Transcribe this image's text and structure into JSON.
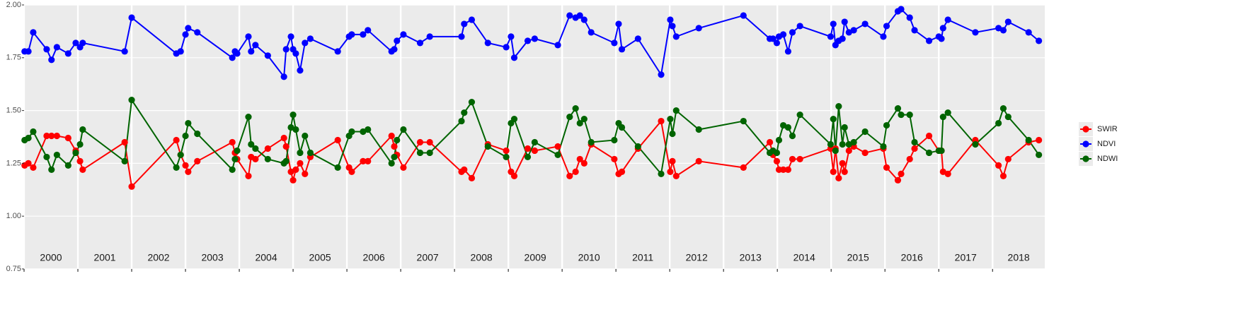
{
  "chart_data": {
    "type": "line",
    "x": [
      2000.01,
      2000.08,
      2000.17,
      2000.42,
      2000.51,
      2000.61,
      2000.82,
      2000.96,
      2001.04,
      2001.09,
      2001.87,
      2002.0,
      2002.83,
      2002.91,
      2003.0,
      2003.05,
      2003.22,
      2003.87,
      2003.92,
      2003.96,
      2004.17,
      2004.22,
      2004.3,
      2004.53,
      2004.83,
      2004.87,
      2004.96,
      2005.0,
      2005.05,
      2005.13,
      2005.22,
      2005.32,
      2005.83,
      2006.04,
      2006.09,
      2006.3,
      2006.39,
      2006.83,
      2006.88,
      2006.93,
      2007.05,
      2007.36,
      2007.54,
      2008.13,
      2008.18,
      2008.32,
      2008.62,
      2008.96,
      2009.05,
      2009.11,
      2009.36,
      2009.49,
      2009.92,
      2010.14,
      2010.25,
      2010.33,
      2010.41,
      2010.54,
      2010.97,
      2011.05,
      2011.11,
      2011.41,
      2011.84,
      2012.01,
      2012.05,
      2012.12,
      2012.54,
      2013.37,
      2013.86,
      2013.92,
      2013.99,
      2014.03,
      2014.11,
      2014.2,
      2014.28,
      2014.42,
      2014.99,
      2015.04,
      2015.08,
      2015.14,
      2015.21,
      2015.25,
      2015.33,
      2015.42,
      2015.63,
      2015.97,
      2016.03,
      2016.24,
      2016.3,
      2016.46,
      2016.55,
      2016.82,
      2017.0,
      2017.05,
      2017.08,
      2017.17,
      2017.68,
      2018.11,
      2018.2,
      2018.29,
      2018.67,
      2018.86
    ],
    "series": [
      {
        "name": "SWIR",
        "color": "#ff0000",
        "values": [
          1.24,
          1.25,
          1.23,
          1.38,
          1.38,
          1.38,
          1.37,
          1.31,
          1.26,
          1.22,
          1.35,
          1.14,
          1.36,
          1.29,
          1.24,
          1.21,
          1.26,
          1.35,
          1.3,
          1.27,
          1.19,
          1.28,
          1.27,
          1.32,
          1.37,
          1.33,
          1.21,
          1.17,
          1.22,
          1.25,
          1.2,
          1.28,
          1.36,
          1.23,
          1.21,
          1.26,
          1.26,
          1.38,
          1.33,
          1.29,
          1.23,
          1.35,
          1.35,
          1.21,
          1.22,
          1.18,
          1.34,
          1.31,
          1.21,
          1.19,
          1.32,
          1.31,
          1.33,
          1.19,
          1.21,
          1.27,
          1.25,
          1.34,
          1.27,
          1.2,
          1.21,
          1.32,
          1.45,
          1.21,
          1.26,
          1.19,
          1.26,
          1.23,
          1.35,
          1.29,
          1.26,
          1.22,
          1.22,
          1.22,
          1.27,
          1.27,
          1.32,
          1.21,
          1.32,
          1.18,
          1.25,
          1.21,
          1.31,
          1.33,
          1.3,
          1.32,
          1.23,
          1.17,
          1.2,
          1.27,
          1.32,
          1.38,
          1.31,
          1.31,
          1.21,
          1.2,
          1.36,
          1.24,
          1.19,
          1.27,
          1.35,
          1.36
        ]
      },
      {
        "name": "NDVI",
        "color": "#0000ff",
        "values": [
          1.78,
          1.78,
          1.87,
          1.79,
          1.74,
          1.8,
          1.77,
          1.82,
          1.8,
          1.82,
          1.78,
          1.94,
          1.77,
          1.78,
          1.86,
          1.89,
          1.87,
          1.75,
          1.78,
          1.77,
          1.85,
          1.78,
          1.81,
          1.76,
          1.66,
          1.79,
          1.85,
          1.79,
          1.77,
          1.69,
          1.82,
          1.84,
          1.78,
          1.85,
          1.86,
          1.86,
          1.88,
          1.78,
          1.79,
          1.83,
          1.86,
          1.82,
          1.85,
          1.85,
          1.91,
          1.93,
          1.82,
          1.8,
          1.85,
          1.75,
          1.83,
          1.84,
          1.81,
          1.95,
          1.94,
          1.95,
          1.93,
          1.87,
          1.82,
          1.91,
          1.79,
          1.84,
          1.67,
          1.93,
          1.9,
          1.85,
          1.89,
          1.95,
          1.84,
          1.84,
          1.82,
          1.85,
          1.86,
          1.78,
          1.87,
          1.9,
          1.85,
          1.91,
          1.81,
          1.83,
          1.84,
          1.92,
          1.87,
          1.88,
          1.91,
          1.85,
          1.9,
          1.97,
          1.98,
          1.94,
          1.88,
          1.83,
          1.85,
          1.84,
          1.89,
          1.93,
          1.87,
          1.89,
          1.88,
          1.92,
          1.87,
          1.83
        ]
      },
      {
        "name": "NDWI",
        "color": "#006400",
        "values": [
          1.36,
          1.37,
          1.4,
          1.28,
          1.22,
          1.29,
          1.24,
          1.3,
          1.34,
          1.41,
          1.26,
          1.55,
          1.23,
          1.29,
          1.38,
          1.44,
          1.39,
          1.22,
          1.27,
          1.31,
          1.47,
          1.34,
          1.32,
          1.27,
          1.25,
          1.26,
          1.42,
          1.48,
          1.41,
          1.3,
          1.38,
          1.3,
          1.23,
          1.38,
          1.4,
          1.4,
          1.41,
          1.25,
          1.28,
          1.36,
          1.41,
          1.3,
          1.3,
          1.45,
          1.49,
          1.54,
          1.33,
          1.28,
          1.44,
          1.46,
          1.28,
          1.35,
          1.29,
          1.47,
          1.51,
          1.44,
          1.46,
          1.35,
          1.36,
          1.44,
          1.42,
          1.33,
          1.2,
          1.46,
          1.39,
          1.5,
          1.41,
          1.45,
          1.3,
          1.31,
          1.3,
          1.36,
          1.43,
          1.42,
          1.38,
          1.48,
          1.34,
          1.46,
          1.31,
          1.52,
          1.34,
          1.42,
          1.34,
          1.35,
          1.4,
          1.33,
          1.43,
          1.51,
          1.48,
          1.48,
          1.35,
          1.3,
          1.31,
          1.31,
          1.47,
          1.49,
          1.34,
          1.44,
          1.51,
          1.47,
          1.36,
          1.29
        ]
      }
    ],
    "xlim": [
      2000,
      2018.97
    ],
    "xticks": [
      2000,
      2001,
      2002,
      2003,
      2004,
      2005,
      2006,
      2007,
      2008,
      2009,
      2010,
      2011,
      2012,
      2013,
      2014,
      2015,
      2016,
      2017,
      2018
    ],
    "ylim": [
      0.75,
      2
    ],
    "yticks": [
      {
        "value": 0.75,
        "label": "0.75"
      },
      {
        "value": 1,
        "label": "1.00"
      },
      {
        "value": 1.25,
        "label": "1.25"
      },
      {
        "value": 1.5,
        "label": "1.50"
      },
      {
        "value": 1.75,
        "label": "1.75"
      },
      {
        "value": 2,
        "label": "2.00"
      }
    ],
    "grid": true,
    "legend": "right"
  }
}
